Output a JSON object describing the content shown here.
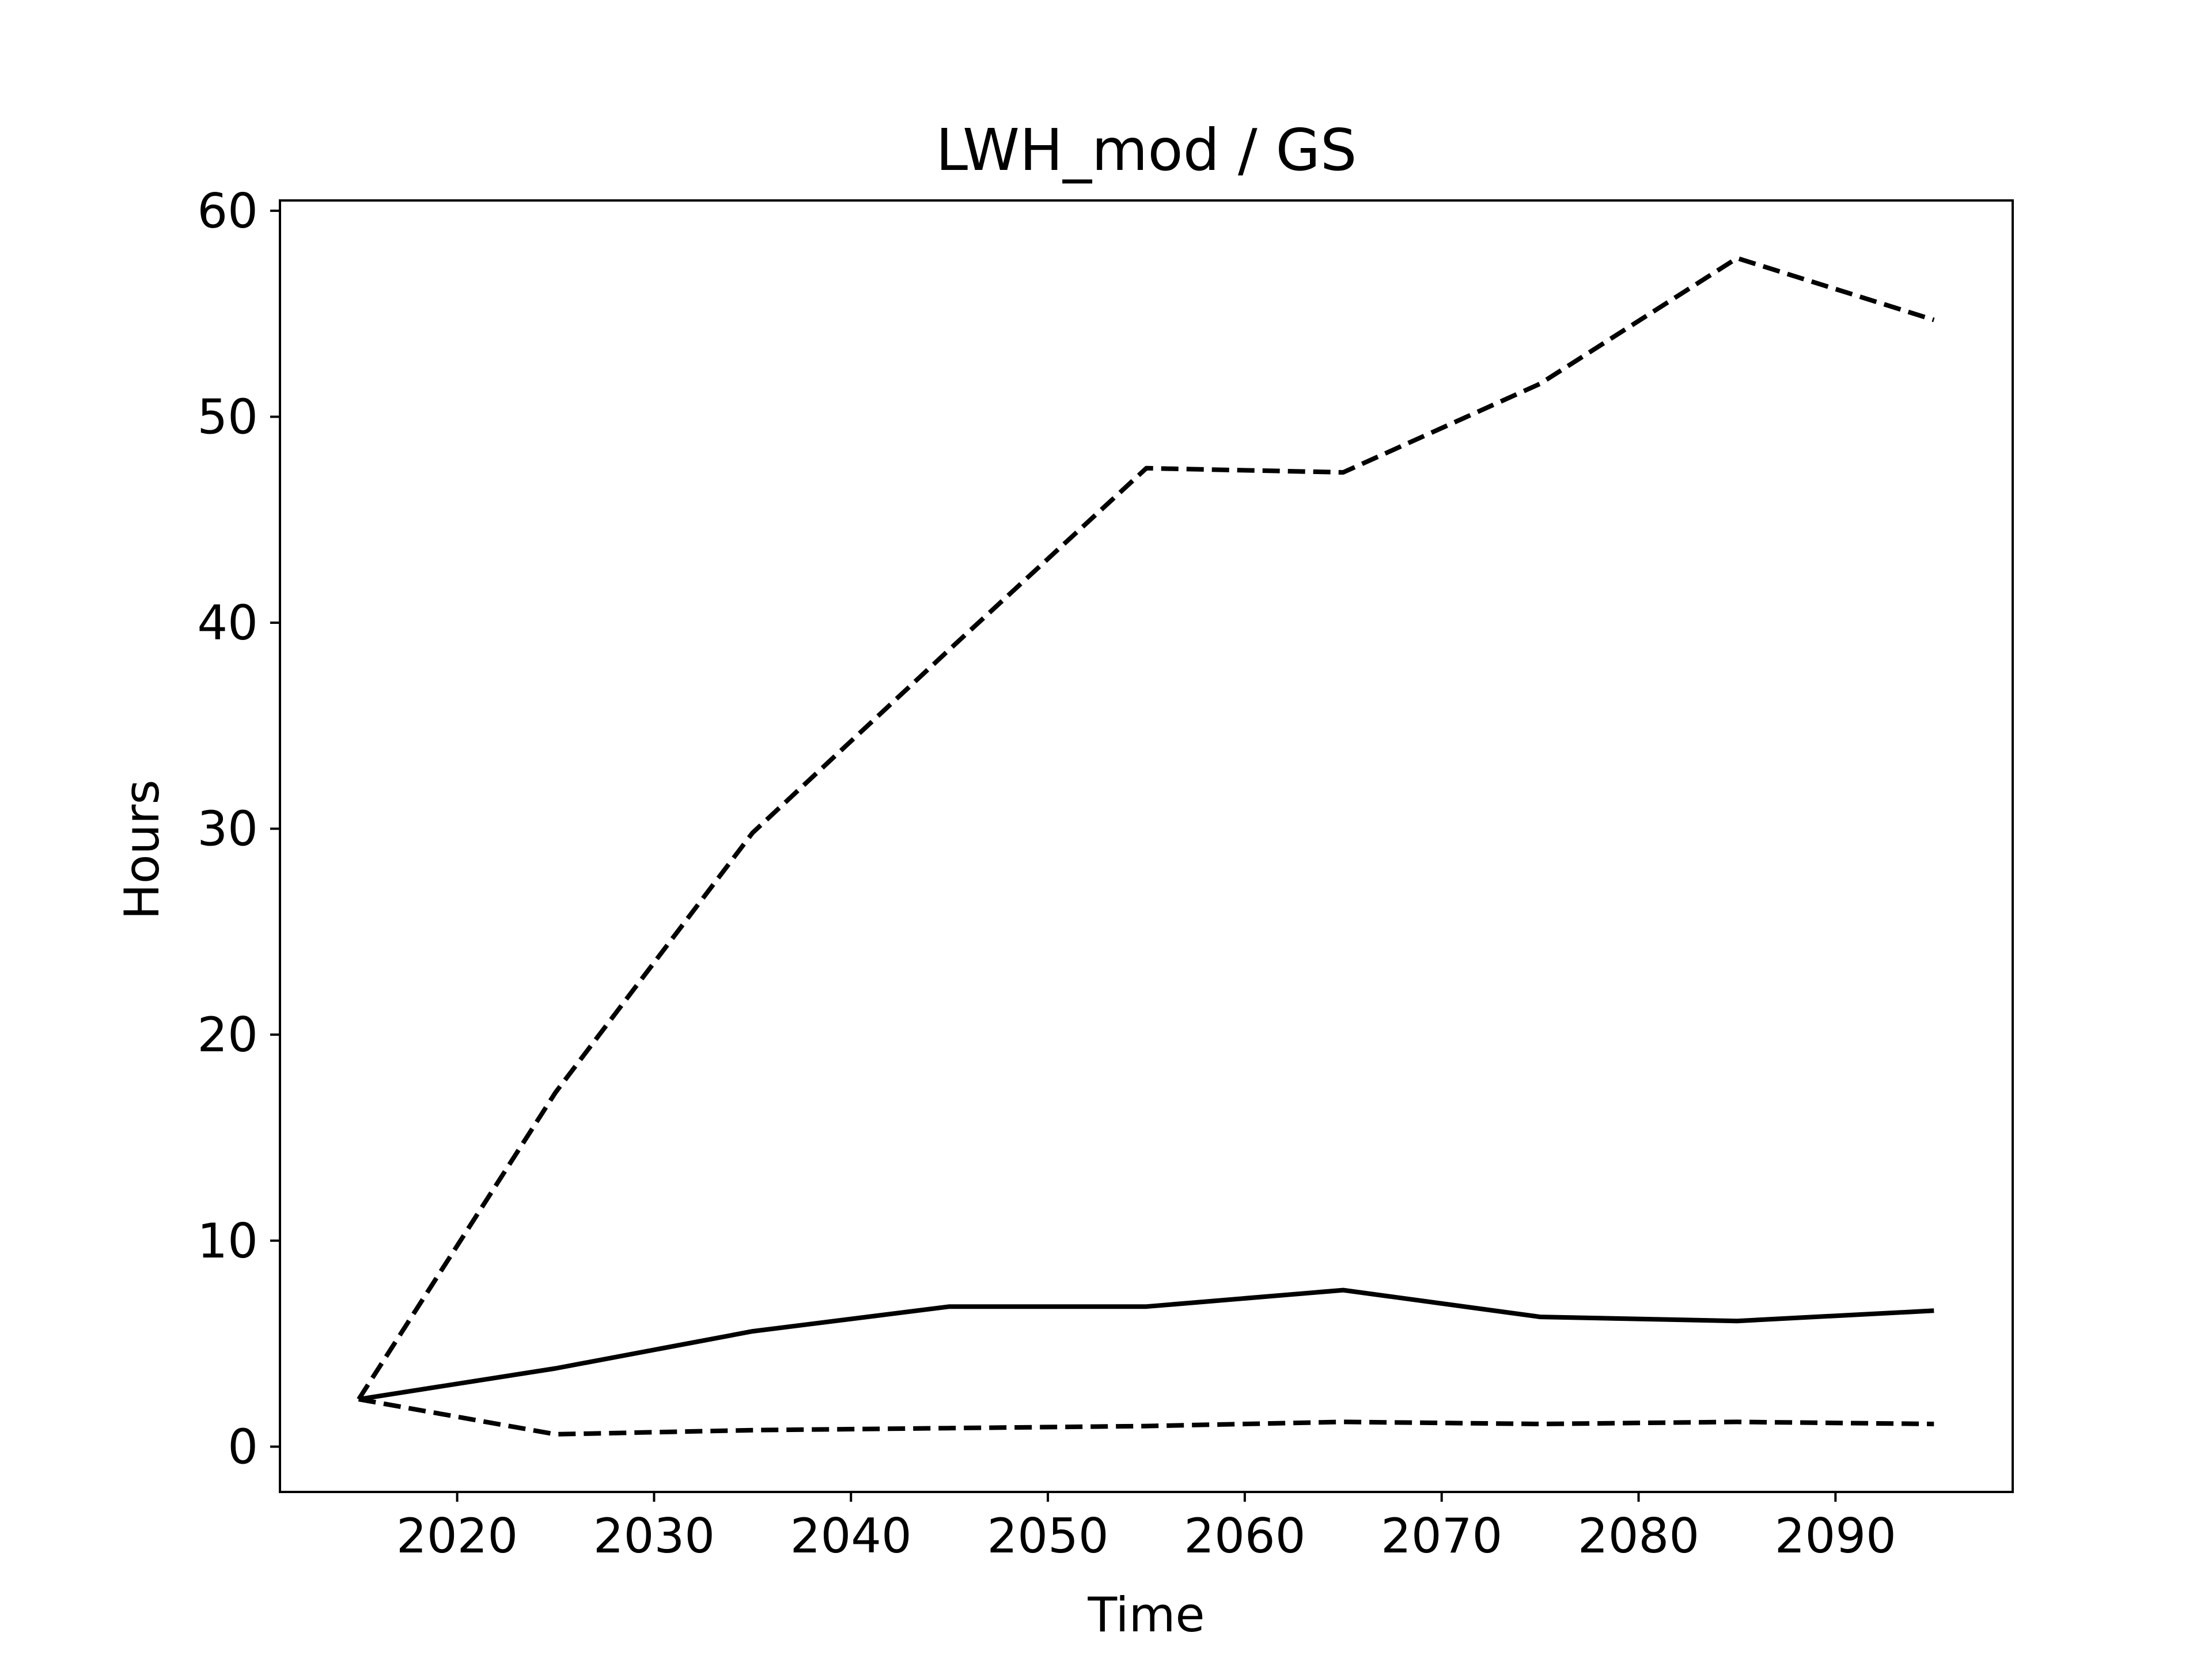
{
  "chart_data": {
    "type": "line",
    "title": "LWH_mod / GS",
    "xlabel": "Time",
    "ylabel": "Hours",
    "x": [
      2015,
      2025,
      2035,
      2045,
      2055,
      2065,
      2075,
      2085,
      2095
    ],
    "xlim": [
      2011,
      2099
    ],
    "ylim": [
      -2.2,
      60.5
    ],
    "xticks": [
      2020,
      2030,
      2040,
      2050,
      2060,
      2070,
      2080,
      2090
    ],
    "yticks": [
      0,
      10,
      20,
      30,
      40,
      50,
      60
    ],
    "grid": false,
    "legend": "none",
    "line_color": "#000000",
    "series": [
      {
        "style": "solid",
        "values": [
          2.3,
          3.8,
          5.6,
          6.8,
          6.8,
          7.6,
          6.3,
          6.1,
          6.6
        ]
      },
      {
        "style": "dashed",
        "values": [
          2.3,
          17.2,
          29.8,
          38.7,
          47.5,
          47.3,
          51.6,
          57.7,
          54.7
        ]
      },
      {
        "style": "dashed",
        "values": [
          2.3,
          0.6,
          0.8,
          0.9,
          1.0,
          1.2,
          1.1,
          1.2,
          1.1
        ]
      }
    ]
  }
}
